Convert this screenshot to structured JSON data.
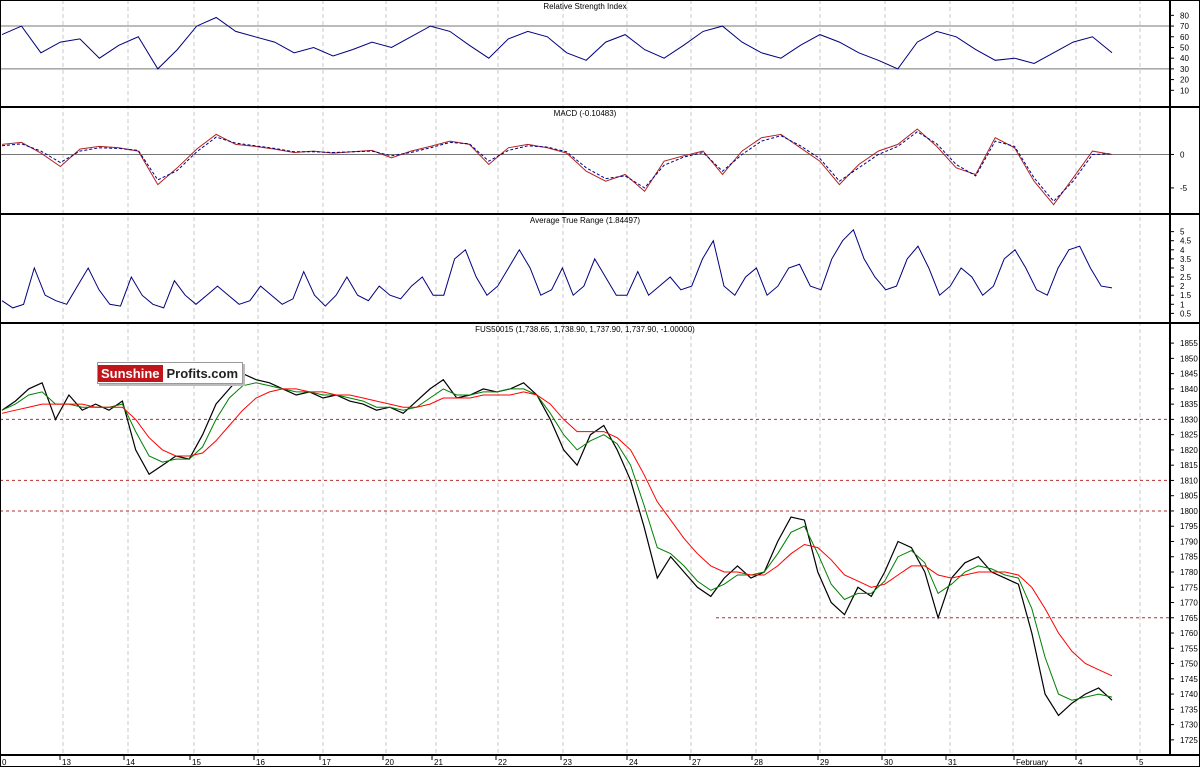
{
  "logo": {
    "part1": "Sunshine",
    "part2": "Profits.com"
  },
  "x_axis": {
    "labels": [
      "0",
      "13",
      "14",
      "15",
      "16",
      "17",
      "20",
      "21",
      "22",
      "23",
      "24",
      "27",
      "28",
      "29",
      "30",
      "31",
      "February",
      "4",
      "5"
    ]
  },
  "chart_data": [
    {
      "type": "line",
      "title": "Relative Strength Index",
      "ylim": [
        0,
        85
      ],
      "yticks": [
        10,
        20,
        30,
        40,
        50,
        60,
        70,
        80
      ],
      "reference_lines": [
        30,
        70
      ],
      "series": [
        {
          "values": [
            62,
            70,
            45,
            55,
            58,
            40,
            52,
            60,
            30,
            48,
            70,
            78,
            65,
            60,
            55,
            45,
            50,
            42,
            48,
            55,
            50,
            60,
            70,
            65,
            52,
            40,
            58,
            65,
            60,
            45,
            38,
            55,
            62,
            48,
            40,
            52,
            65,
            70,
            55,
            45,
            40,
            52,
            62,
            55,
            45,
            38,
            30,
            55,
            65,
            60,
            48,
            38,
            40,
            35,
            45,
            55,
            60,
            45
          ]
        }
      ]
    },
    {
      "type": "line",
      "title": "MACD (-0.10483)",
      "ylim": [
        -8,
        5
      ],
      "yticks": [
        0,
        -5
      ],
      "reference_lines": [
        0
      ],
      "series": [
        {
          "values": [
            1.5,
            1.8,
            0.2,
            -1.8,
            0.8,
            1.2,
            1.0,
            0.5,
            -4.5,
            -2.0,
            0.8,
            3.0,
            1.5,
            1.2,
            0.8,
            0.3,
            0.5,
            0.2,
            0.4,
            0.6,
            -0.5,
            0.5,
            1.2,
            2.0,
            1.5,
            -1.5,
            1.0,
            1.5,
            1.0,
            0.2,
            -2.5,
            -4.0,
            -3.0,
            -5.5,
            -1.0,
            -0.2,
            0.5,
            -3.0,
            0.5,
            2.5,
            3.0,
            1.0,
            -1.0,
            -4.5,
            -1.5,
            0.5,
            1.5,
            3.8,
            1.2,
            -2.0,
            -3.0,
            2.5,
            1.0,
            -4.0,
            -7.5,
            -3.5,
            0.5,
            0
          ]
        },
        {
          "values": [
            1.3,
            1.6,
            0.5,
            -1.2,
            0.5,
            1.0,
            0.9,
            0.6,
            -3.8,
            -2.4,
            0.4,
            2.6,
            1.7,
            1.3,
            0.9,
            0.4,
            0.4,
            0.3,
            0.4,
            0.5,
            -0.2,
            0.3,
            1.0,
            1.8,
            1.6,
            -1.0,
            0.6,
            1.3,
            1.1,
            0.4,
            -2.0,
            -3.6,
            -3.2,
            -5.0,
            -1.6,
            -0.4,
            0.3,
            -2.5,
            0.0,
            2.0,
            2.8,
            1.3,
            -0.6,
            -4.0,
            -2.0,
            0.0,
            1.2,
            3.4,
            1.6,
            -1.5,
            -3.2,
            2.0,
            1.2,
            -3.5,
            -7.0,
            -4.0,
            0.0,
            0.1
          ]
        }
      ]
    },
    {
      "type": "line",
      "title": "Average True Range (1.84497)",
      "ylim": [
        0.3,
        5.2
      ],
      "yticks": [
        0.5,
        1.0,
        1.5,
        2.0,
        2.5,
        3.0,
        3.5,
        4.0,
        4.5,
        5.0
      ],
      "series": [
        {
          "values": [
            1.2,
            0.8,
            1.0,
            3.0,
            1.5,
            1.2,
            1.0,
            2.0,
            3.0,
            1.8,
            1.0,
            0.9,
            2.5,
            1.5,
            1.0,
            0.8,
            2.3,
            1.5,
            1.0,
            1.5,
            2.0,
            1.5,
            1.0,
            1.2,
            2.0,
            1.5,
            1.0,
            1.3,
            2.8,
            1.5,
            0.9,
            1.5,
            2.5,
            1.5,
            1.2,
            2.0,
            1.5,
            1.3,
            2.0,
            2.5,
            1.5,
            1.5,
            3.5,
            4.0,
            2.5,
            1.5,
            2.0,
            3.0,
            4.0,
            3.0,
            1.5,
            1.8,
            3.0,
            1.5,
            2.0,
            3.5,
            2.5,
            1.5,
            1.5,
            2.8,
            1.5,
            2.0,
            2.5,
            1.8,
            2.0,
            3.5,
            4.5,
            2.0,
            1.5,
            2.5,
            3.0,
            1.5,
            2.0,
            3.0,
            3.2,
            2.0,
            1.8,
            3.5,
            4.5,
            5.1,
            3.5,
            2.5,
            1.8,
            2.0,
            3.5,
            4.2,
            3.0,
            1.5,
            2.0,
            3.0,
            2.5,
            1.5,
            2.0,
            3.5,
            4.0,
            3.0,
            1.8,
            1.5,
            3.0,
            4.0,
            4.2,
            3.0,
            2.0,
            1.9
          ]
        }
      ]
    },
    {
      "type": "line",
      "title": "FUS50015 (1,738.65, 1,738.90, 1,737.90, 1,737.90, -1.00000)",
      "ylim": [
        1722,
        1857
      ],
      "yticks": [
        1725,
        1730,
        1735,
        1740,
        1745,
        1750,
        1755,
        1760,
        1765,
        1770,
        1775,
        1780,
        1785,
        1790,
        1795,
        1800,
        1805,
        1810,
        1815,
        1820,
        1825,
        1830,
        1835,
        1840,
        1845,
        1850,
        1855
      ],
      "reference_lines": [
        1830,
        1810,
        1800,
        1765
      ],
      "series": [
        {
          "values": [
            1833,
            1836,
            1840,
            1842,
            1830,
            1838,
            1833,
            1835,
            1833,
            1836,
            1820,
            1812,
            1815,
            1818,
            1817,
            1825,
            1835,
            1840,
            1845,
            1843,
            1842,
            1840,
            1838,
            1839,
            1837,
            1838,
            1836,
            1835,
            1833,
            1834,
            1832,
            1836,
            1840,
            1843,
            1837,
            1838,
            1840,
            1839,
            1840,
            1842,
            1838,
            1830,
            1820,
            1815,
            1825,
            1828,
            1820,
            1810,
            1795,
            1778,
            1785,
            1780,
            1775,
            1772,
            1778,
            1782,
            1778,
            1780,
            1790,
            1798,
            1797,
            1780,
            1770,
            1766,
            1775,
            1772,
            1780,
            1790,
            1788,
            1780,
            1765,
            1778,
            1783,
            1785,
            1780,
            1778,
            1776,
            1760,
            1740,
            1733,
            1737,
            1740,
            1742,
            1738
          ]
        },
        {
          "values": [
            1833,
            1835,
            1838,
            1839,
            1835,
            1835,
            1834,
            1834,
            1834,
            1835,
            1826,
            1818,
            1816,
            1817,
            1817,
            1821,
            1830,
            1837,
            1841,
            1842,
            1841,
            1840,
            1839,
            1839,
            1838,
            1838,
            1837,
            1836,
            1834,
            1834,
            1833,
            1834,
            1837,
            1840,
            1838,
            1838,
            1839,
            1839,
            1840,
            1840,
            1838,
            1832,
            1825,
            1820,
            1823,
            1825,
            1822,
            1815,
            1802,
            1788,
            1786,
            1782,
            1777,
            1774,
            1776,
            1779,
            1779,
            1780,
            1786,
            1793,
            1795,
            1786,
            1776,
            1771,
            1773,
            1773,
            1777,
            1785,
            1787,
            1783,
            1773,
            1776,
            1780,
            1782,
            1781,
            1779,
            1778,
            1768,
            1752,
            1740,
            1738,
            1739,
            1740,
            1739
          ]
        },
        {
          "values": [
            1832,
            1833,
            1834,
            1835,
            1835,
            1835,
            1835,
            1834,
            1834,
            1834,
            1830,
            1824,
            1820,
            1818,
            1818,
            1819,
            1823,
            1828,
            1833,
            1837,
            1839,
            1840,
            1840,
            1839,
            1839,
            1838,
            1838,
            1837,
            1836,
            1835,
            1834,
            1834,
            1835,
            1837,
            1837,
            1837,
            1838,
            1838,
            1838,
            1839,
            1838,
            1835,
            1830,
            1826,
            1826,
            1826,
            1824,
            1820,
            1812,
            1803,
            1797,
            1791,
            1786,
            1782,
            1780,
            1780,
            1779,
            1779,
            1782,
            1786,
            1789,
            1788,
            1784,
            1779,
            1777,
            1775,
            1776,
            1779,
            1782,
            1782,
            1779,
            1778,
            1779,
            1780,
            1780,
            1780,
            1779,
            1775,
            1768,
            1760,
            1754,
            1750,
            1748,
            1746
          ]
        }
      ]
    }
  ]
}
